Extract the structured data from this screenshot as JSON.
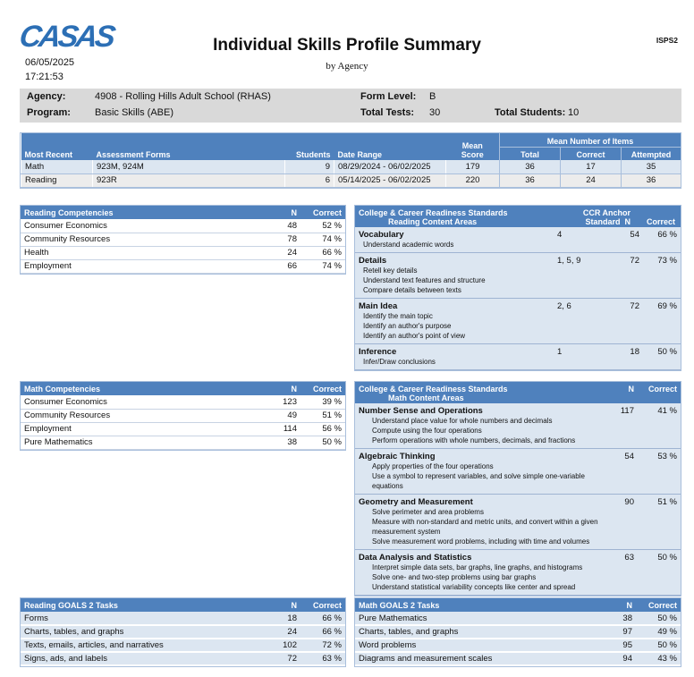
{
  "header": {
    "logo": "CASAS",
    "title": "Individual Skills Profile Summary",
    "subtitle": "by Agency",
    "report_code": "ISPS2",
    "date": "06/05/2025",
    "time": "17:21:53"
  },
  "info": {
    "agency_label": "Agency:",
    "agency": "4908 - Rolling Hills Adult School (RHAS)",
    "program_label": "Program:",
    "program": "Basic Skills (ABE)",
    "form_level_label": "Form Level:",
    "form_level": "B",
    "total_tests_label": "Total Tests:",
    "total_tests": "30",
    "total_students_label": "Total Students:",
    "total_students": "10"
  },
  "summary": {
    "headers": {
      "most_recent": "Most Recent",
      "forms": "Assessment Forms",
      "students": "Students",
      "date_range": "Date Range",
      "mean": "Mean",
      "score": "Score",
      "mean_items": "Mean Number of Items",
      "total": "Total",
      "correct": "Correct",
      "attempted": "Attempted"
    },
    "rows": [
      [
        "Math",
        "923M, 924M",
        "9",
        "08/29/2024 - 06/02/2025",
        "179",
        "36",
        "17",
        "35"
      ],
      [
        "Reading",
        "923R",
        "6",
        "05/14/2025 - 06/02/2025",
        "220",
        "36",
        "24",
        "36"
      ]
    ]
  },
  "reading_competencies": {
    "headers": [
      "Reading Competencies",
      "N",
      "Correct"
    ],
    "rows": [
      [
        "Consumer Economics",
        "48",
        "52 %"
      ],
      [
        "Community Resources",
        "78",
        "74 %"
      ],
      [
        "Health",
        "24",
        "66 %"
      ],
      [
        "Employment",
        "66",
        "74 %"
      ]
    ]
  },
  "math_competencies": {
    "headers": [
      "Math Competencies",
      "N",
      "Correct"
    ],
    "rows": [
      [
        "Consumer Economics",
        "123",
        "39 %"
      ],
      [
        "Community Resources",
        "49",
        "51 %"
      ],
      [
        "Employment",
        "114",
        "56 %"
      ],
      [
        "Pure Mathematics",
        "38",
        "50 %"
      ]
    ]
  },
  "ccr_reading": {
    "title1": "College & Career Readiness Standards",
    "title2": "Reading Content Areas",
    "anchor": "CCR Anchor Standard",
    "n": "N",
    "correct": "Correct",
    "areas": [
      {
        "name": "Vocabulary",
        "anchor": "4",
        "n": "54",
        "correct": "66 %",
        "skills": [
          "Understand academic words"
        ]
      },
      {
        "name": "Details",
        "anchor": "1, 5, 9",
        "n": "72",
        "correct": "73 %",
        "skills": [
          "Retell key details",
          "Understand text features and structure",
          "Compare details between texts"
        ]
      },
      {
        "name": "Main Idea",
        "anchor": "2, 6",
        "n": "72",
        "correct": "69 %",
        "skills": [
          "Identify the main topic",
          "Identify an author's purpose",
          "Identify an author's point of view"
        ]
      },
      {
        "name": "Inference",
        "anchor": "1",
        "n": "18",
        "correct": "50 %",
        "skills": [
          "Infer/Draw conclusions"
        ]
      }
    ]
  },
  "ccr_math": {
    "title1": "College & Career Readiness Standards",
    "title2": "Math Content Areas",
    "n": "N",
    "correct": "Correct",
    "areas": [
      {
        "name": "Number Sense and Operations",
        "n": "117",
        "correct": "41 %",
        "skills": [
          "Understand place value for whole numbers and decimals",
          "Compute using the four operations",
          "Perform operations with whole numbers, decimals, and fractions"
        ]
      },
      {
        "name": "Algebraic Thinking",
        "n": "54",
        "correct": "53 %",
        "skills": [
          "Apply properties of the four operations",
          "Use a symbol to represent variables, and solve simple one-variable equations"
        ]
      },
      {
        "name": "Geometry and Measurement",
        "n": "90",
        "correct": "51 %",
        "skills": [
          "Solve perimeter and area problems",
          "Measure with non-standard and metric units, and convert within a given measurement system",
          "Solve measurement word problems, including with time and volumes"
        ]
      },
      {
        "name": "Data Analysis and Statistics",
        "n": "63",
        "correct": "50 %",
        "skills": [
          "Interpret simple data sets, bar graphs, line graphs, and histograms",
          "Solve one- and two-step problems using bar graphs",
          "Understand statistical variability concepts like center and spread"
        ]
      }
    ]
  },
  "reading_goals": {
    "headers": [
      "Reading GOALS 2 Tasks",
      "N",
      "Correct"
    ],
    "rows": [
      [
        "Forms",
        "18",
        "66 %"
      ],
      [
        "Charts, tables, and graphs",
        "24",
        "66 %"
      ],
      [
        "Texts, emails, articles, and narratives",
        "102",
        "72 %"
      ],
      [
        "Signs, ads, and labels",
        "72",
        "63 %"
      ]
    ]
  },
  "math_goals": {
    "headers": [
      "Math GOALS 2 Tasks",
      "N",
      "Correct"
    ],
    "rows": [
      [
        "Pure Mathematics",
        "38",
        "50 %"
      ],
      [
        "Charts, tables, and graphs",
        "97",
        "49 %"
      ],
      [
        "Word problems",
        "95",
        "50 %"
      ],
      [
        "Diagrams and measurement scales",
        "94",
        "43 %"
      ]
    ]
  },
  "colors": {
    "header_blue": "#4f81bd",
    "row_blue": "#dce6f1",
    "info_gray": "#d9d9d9",
    "logo_blue": "#2c6fb5"
  }
}
